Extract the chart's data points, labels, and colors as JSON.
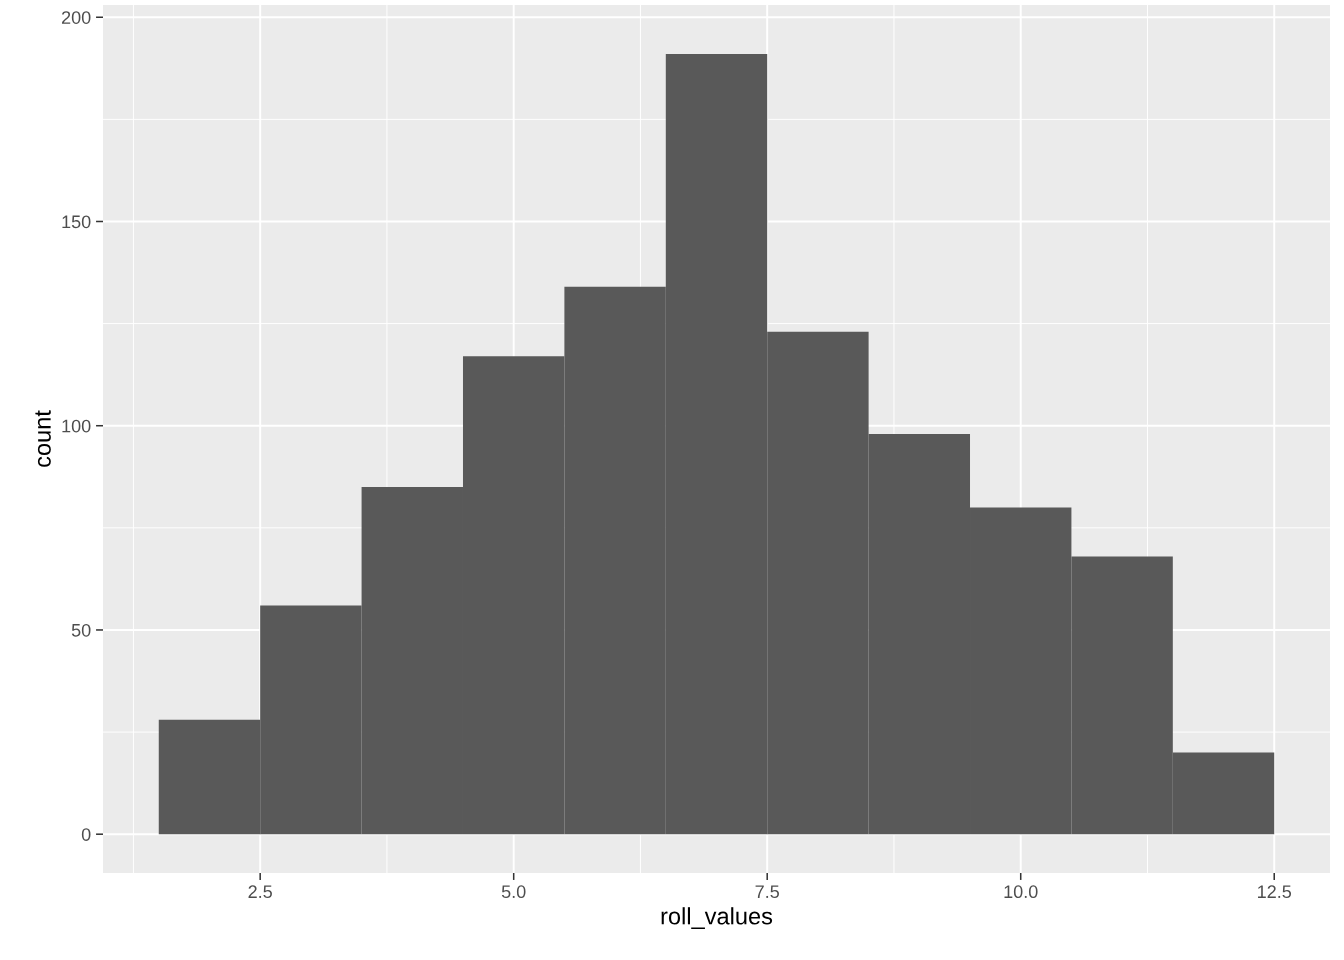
{
  "chart_data": {
    "type": "histogram",
    "xlabel": "roll_values",
    "ylabel": "count",
    "bins": [
      1.5,
      2.5,
      3.5,
      4.5,
      5.5,
      6.5,
      7.5,
      8.5,
      9.5,
      10.5,
      11.5,
      12.5
    ],
    "values": [
      28,
      56,
      85,
      117,
      134,
      191,
      123,
      98,
      80,
      68,
      20
    ],
    "color": "#595959",
    "xlim": [
      0.95,
      13.05
    ],
    "ylim": [
      -9.5,
      203
    ],
    "xticks": [
      {
        "value": 2.5,
        "label": "2.5"
      },
      {
        "value": 5,
        "label": "5.0"
      },
      {
        "value": 7.5,
        "label": "7.5"
      },
      {
        "value": 10,
        "label": "10.0"
      },
      {
        "value": 12.5,
        "label": "12.5"
      }
    ],
    "yticks": [
      0,
      50,
      100,
      150,
      200
    ],
    "grid": true
  }
}
